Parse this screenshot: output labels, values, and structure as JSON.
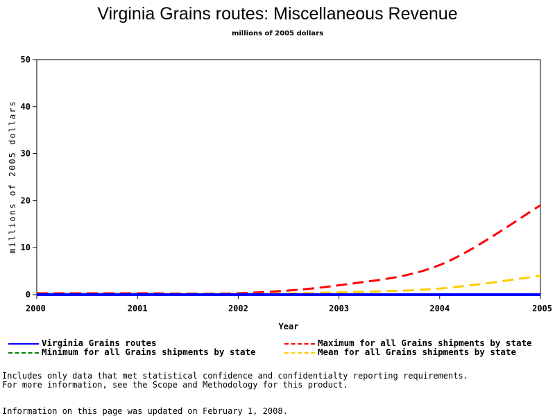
{
  "chart_data": {
    "type": "line",
    "title": "Virginia Grains routes: Miscellaneous Revenue",
    "subtitle": "millions of 2005 dollars",
    "xlabel": "Year",
    "ylabel": "millions of 2005 dollars",
    "x": [
      2000,
      2001,
      2002,
      2003,
      2004,
      2005
    ],
    "xlim": [
      2000,
      2005
    ],
    "ylim": [
      0,
      50
    ],
    "xticks": [
      "2000",
      "2001",
      "2002",
      "2003",
      "2004",
      "2005"
    ],
    "yticks": [
      "0",
      "10",
      "20",
      "30",
      "40",
      "50"
    ],
    "grid": false,
    "legend_position": "bottom",
    "series": [
      {
        "name": "Virginia Grains routes",
        "color": "#0000ff",
        "dash": "solid",
        "values": [
          0.0,
          0.0,
          0.0,
          0.0,
          0.0,
          0.0
        ]
      },
      {
        "name": "Maximum for all Grains shipments by state",
        "color": "#ff0000",
        "dash": "dashed",
        "values": [
          0.3,
          0.3,
          0.3,
          2.0,
          6.3,
          19.0
        ]
      },
      {
        "name": "Minimum for all Grains shipments by state",
        "color": "#008000",
        "dash": "dashed",
        "values": [
          0.0,
          0.0,
          0.0,
          0.0,
          0.0,
          0.0
        ]
      },
      {
        "name": "Mean for all Grains shipments by state",
        "color": "#ffcc00",
        "dash": "dashed",
        "values": [
          0.1,
          0.1,
          0.1,
          0.5,
          1.3,
          4.0
        ]
      }
    ]
  },
  "footer": {
    "note1": "Includes only data that met statistical confidence and confidentialty reporting requirements.",
    "note2": "For more information, see the Scope and Methodology for this product.",
    "updated": "Information on this page was updated on February 1, 2008."
  }
}
